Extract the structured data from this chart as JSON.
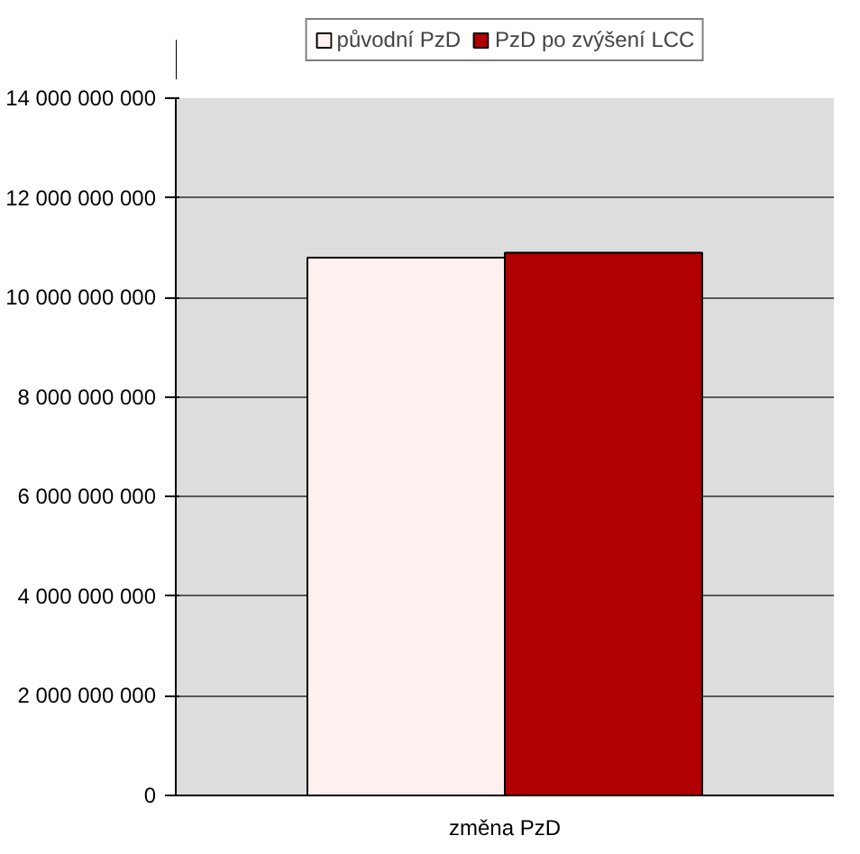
{
  "chart_data": {
    "type": "bar",
    "categories": [
      "změna PzD"
    ],
    "series": [
      {
        "name": "původní PzD",
        "color": "#fdf0ee",
        "values": [
          10800000000
        ]
      },
      {
        "name": "PzD po zvýšení LCC",
        "color": "#b00000",
        "values": [
          10900000000
        ]
      }
    ],
    "ylim": [
      0,
      14000000000
    ],
    "yticks": [
      {
        "value": 0,
        "label": "0"
      },
      {
        "value": 2000000000,
        "label": "2 000 000 000"
      },
      {
        "value": 4000000000,
        "label": "4 000 000 000"
      },
      {
        "value": 6000000000,
        "label": "6 000 000 000"
      },
      {
        "value": 8000000000,
        "label": "8 000 000 000"
      },
      {
        "value": 10000000000,
        "label": "10 000 000 000"
      },
      {
        "value": 12000000000,
        "label": "12 000 000 000"
      },
      {
        "value": 14000000000,
        "label": "14 000 000 000"
      }
    ],
    "grid": "y",
    "legend": "top"
  }
}
